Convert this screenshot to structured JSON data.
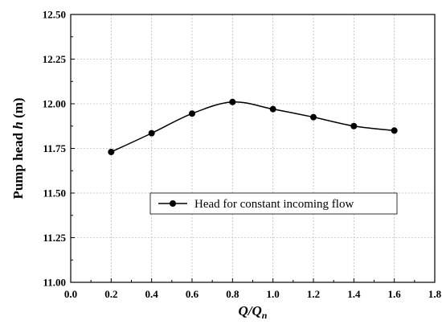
{
  "chart_data": {
    "type": "line",
    "title": "",
    "xlabel": "Q/Q",
    "xlabel_subscript": "n",
    "ylabel": "Pump head",
    "ylabel_symbol": "h",
    "ylabel_unit": "(m)",
    "xlim": [
      0.0,
      1.8
    ],
    "ylim": [
      11.0,
      12.5
    ],
    "x_ticks": [
      "0.0",
      "0.2",
      "0.4",
      "0.6",
      "0.8",
      "1.0",
      "1.2",
      "1.4",
      "1.6",
      "1.8"
    ],
    "y_ticks": [
      "11.00",
      "11.25",
      "11.50",
      "11.75",
      "12.00",
      "12.25",
      "12.50"
    ],
    "grid": true,
    "legend_position": "center-right",
    "series": [
      {
        "name": "Head for constant incoming flow",
        "color": "#000000",
        "marker": "circle",
        "x": [
          0.2,
          0.4,
          0.6,
          0.8,
          1.0,
          1.2,
          1.4,
          1.6
        ],
        "y": [
          11.73,
          11.835,
          11.945,
          12.01,
          11.97,
          11.925,
          11.875,
          11.85
        ]
      }
    ]
  }
}
